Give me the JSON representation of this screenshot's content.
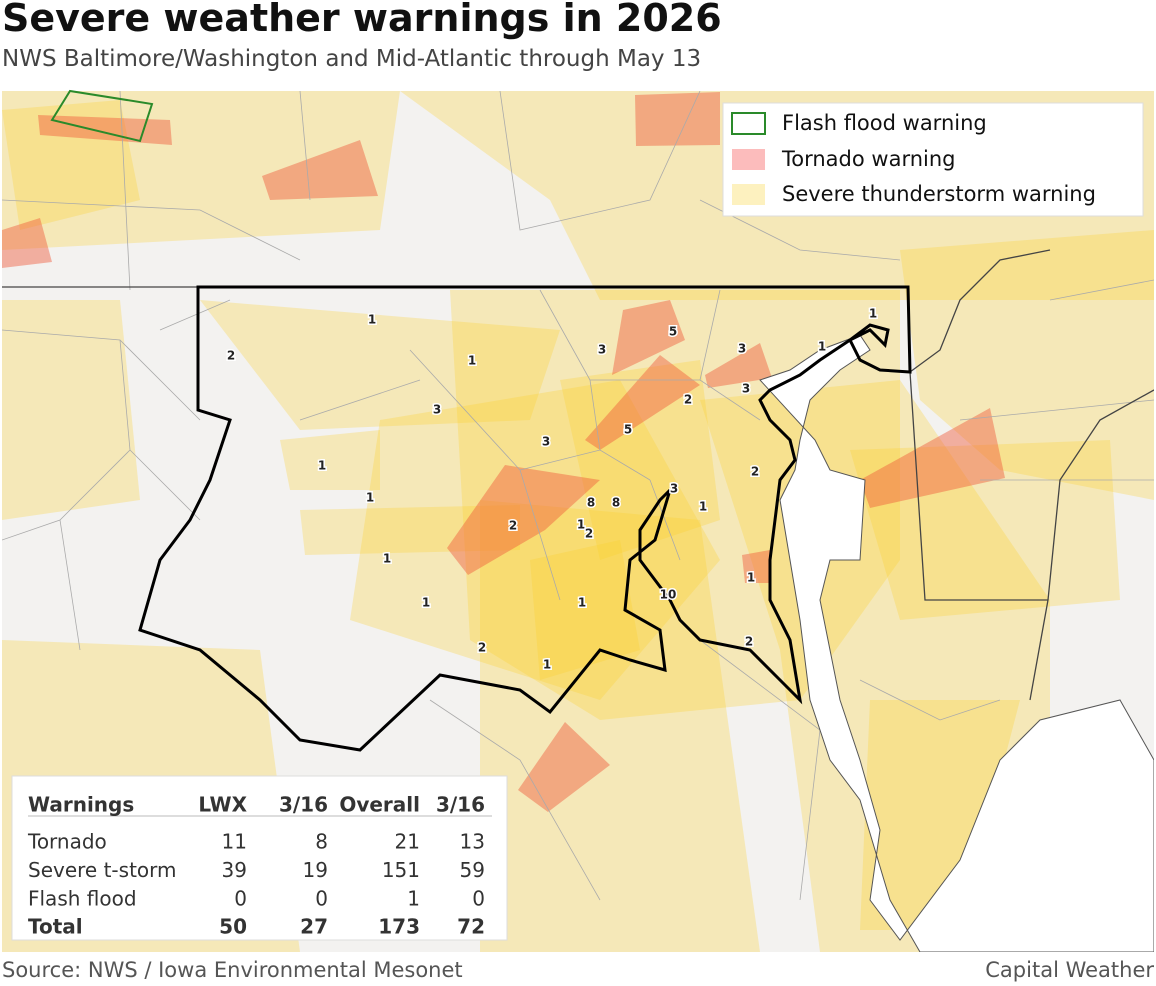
{
  "header": {
    "title": "Severe weather warnings in 2026",
    "subtitle": "NWS Baltimore/Washington and Mid-Atlantic through May 13"
  },
  "legend": [
    "Flash flood warning",
    "Tornado warning",
    "Severe thunderstorm warning"
  ],
  "map": {
    "labels": [
      1,
      2,
      1,
      3,
      1,
      1,
      1,
      1,
      2,
      1,
      1,
      2,
      1,
      2,
      8,
      8,
      3,
      5,
      3,
      5,
      2,
      3,
      3,
      1,
      1,
      2,
      3,
      1,
      10,
      1,
      2
    ]
  },
  "table": {
    "header": [
      "Warnings",
      "LWX",
      "3/16",
      "Overall",
      "3/16"
    ],
    "rows": [
      [
        "Tornado",
        11,
        8,
        21,
        13
      ],
      [
        "Severe t-storm",
        39,
        19,
        151,
        59
      ],
      [
        "Flash flood",
        0,
        0,
        1,
        0
      ]
    ],
    "total": [
      "Total",
      50,
      27,
      173,
      72
    ]
  },
  "footer": {
    "source": "Source: NWS / Iowa Environmental Mesonet",
    "credit": "Capital Weather"
  }
}
